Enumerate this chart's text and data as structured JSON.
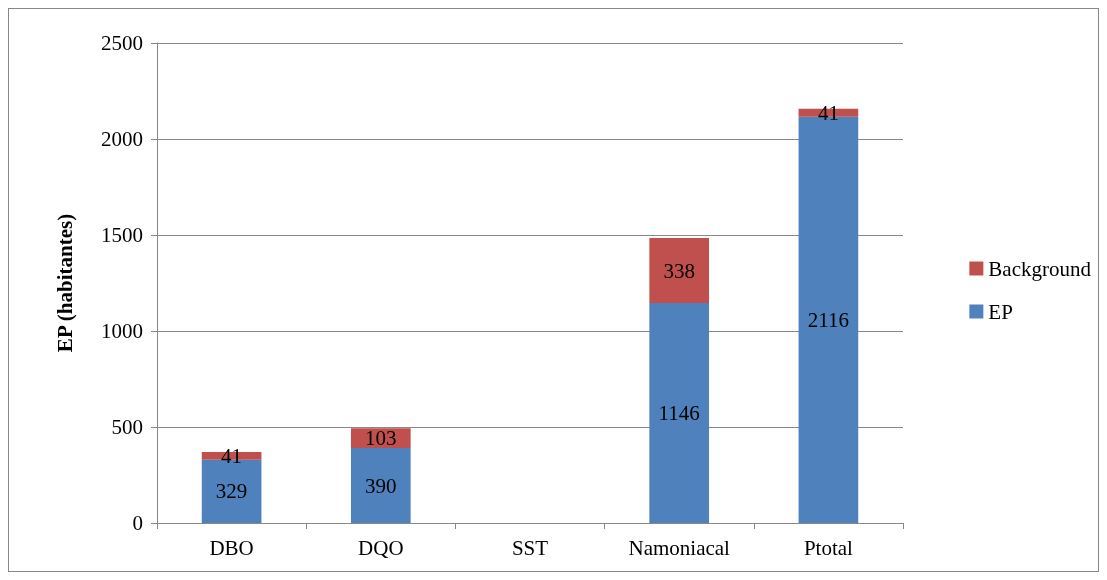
{
  "chart_data": {
    "type": "bar",
    "stacked": true,
    "ylabel": "EP (habitantes)",
    "categories": [
      "DBO",
      "DQO",
      "SST",
      "Namoniacal",
      "Ptotal"
    ],
    "series": [
      {
        "name": "EP",
        "color": "#4f81bd",
        "values": [
          329,
          390,
          null,
          1146,
          2116
        ]
      },
      {
        "name": "Background",
        "color": "#c0504d",
        "values": [
          41,
          103,
          null,
          338,
          41
        ]
      }
    ],
    "ylim": [
      0,
      2500
    ],
    "yticks": [
      0,
      500,
      1000,
      1500,
      2000,
      2500
    ],
    "grid": "y",
    "legend": "right",
    "data_labels": true
  }
}
